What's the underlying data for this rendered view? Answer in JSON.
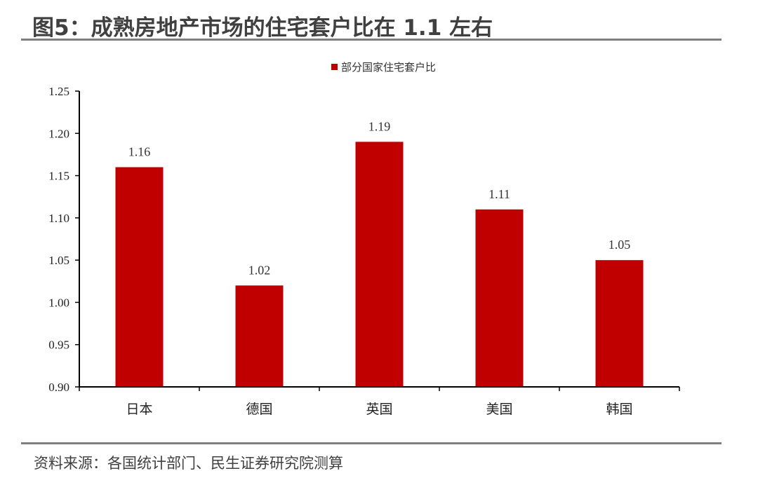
{
  "title": "图5：成熟房地产市场的住宅套户比在 1.1 左右",
  "source": "资料来源：各国统计部门、民生证券研究院测算",
  "chart_data": {
    "type": "bar",
    "categories": [
      "日本",
      "德国",
      "英国",
      "美国",
      "韩国"
    ],
    "series": [
      {
        "name": "部分国家住宅套户比",
        "values": [
          1.16,
          1.02,
          1.19,
          1.11,
          1.05
        ],
        "color": "#C00000"
      }
    ],
    "ylim": [
      0.9,
      1.25
    ],
    "yticks": [
      "0.90",
      "0.95",
      "1.00",
      "1.05",
      "1.10",
      "1.15",
      "1.20",
      "1.25"
    ],
    "data_labels": [
      "1.16",
      "1.02",
      "1.19",
      "1.11",
      "1.05"
    ],
    "legend_position": "top-center",
    "grid": false
  }
}
